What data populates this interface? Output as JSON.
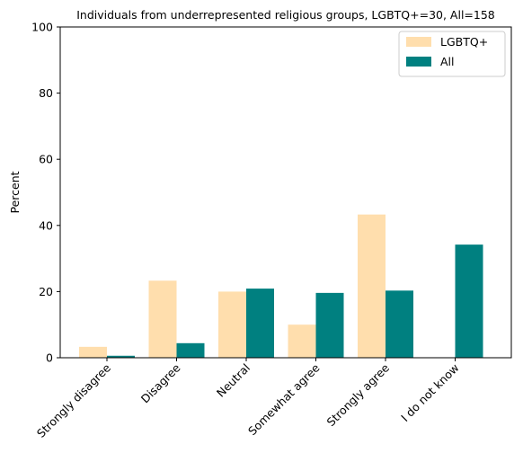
{
  "chart_data": {
    "type": "bar",
    "title": "Individuals from underrepresented religious groups, LGBTQ+=30, All=158",
    "xlabel": "",
    "ylabel": "Percent",
    "ylim": [
      0,
      100
    ],
    "yticks": [
      0,
      20,
      40,
      60,
      80,
      100
    ],
    "categories": [
      "Strongly disagree",
      "Disagree",
      "Neutral",
      "Somewhat agree",
      "Strongly agree",
      "I do not know"
    ],
    "series": [
      {
        "name": "LGBTQ+",
        "color": "#ffdead",
        "values": [
          3.3,
          23.3,
          20.0,
          10.0,
          43.3,
          0.0
        ]
      },
      {
        "name": "All",
        "color": "#008080",
        "values": [
          0.6,
          4.4,
          20.9,
          19.6,
          20.3,
          34.2
        ]
      }
    ],
    "legend": "top-right",
    "grid": false
  }
}
